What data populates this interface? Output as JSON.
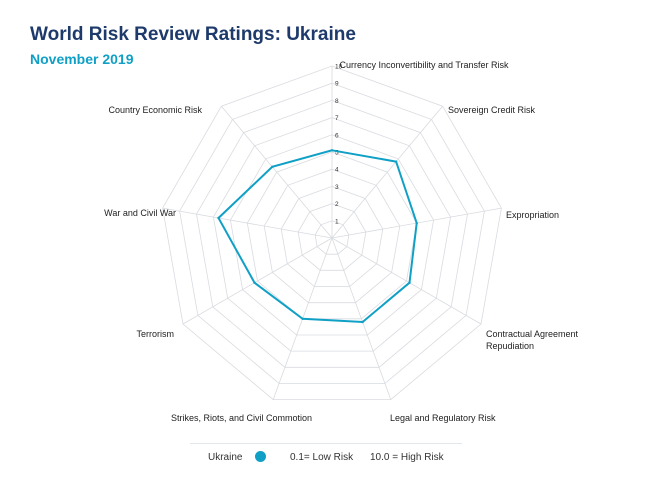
{
  "header": {
    "title": "World Risk Review Ratings: Ukraine",
    "subtitle": "November 2019"
  },
  "legend": {
    "series_label": "Ukraine",
    "low_label": "0.1= Low Risk",
    "high_label": "10.0 = High Risk"
  },
  "colors": {
    "series": "#10a0c6",
    "title": "#1d3a6b",
    "grid": "#d8dbe0"
  },
  "chart_data": {
    "type": "radar",
    "title": "World Risk Review Ratings: Ukraine",
    "subtitle": "November 2019",
    "scale": [
      0,
      10
    ],
    "tick_labels": [
      "1",
      "2",
      "3",
      "4",
      "5",
      "6",
      "7",
      "8",
      "9",
      "10"
    ],
    "categories": [
      "Currency Inconvertibility and Transfer Risk",
      "Sovereign Credit Risk",
      "Expropriation",
      "Contractual Agreement Repudiation",
      "Legal and Regulatory Risk",
      "Strikes, Riots, and Civil Commotion",
      "Terrorism",
      "War and Civil War",
      "Country Economic Risk"
    ],
    "series": [
      {
        "name": "Ukraine",
        "values": [
          5.1,
          5.8,
          5.0,
          5.2,
          5.2,
          5.0,
          5.2,
          6.7,
          5.4
        ]
      }
    ]
  }
}
